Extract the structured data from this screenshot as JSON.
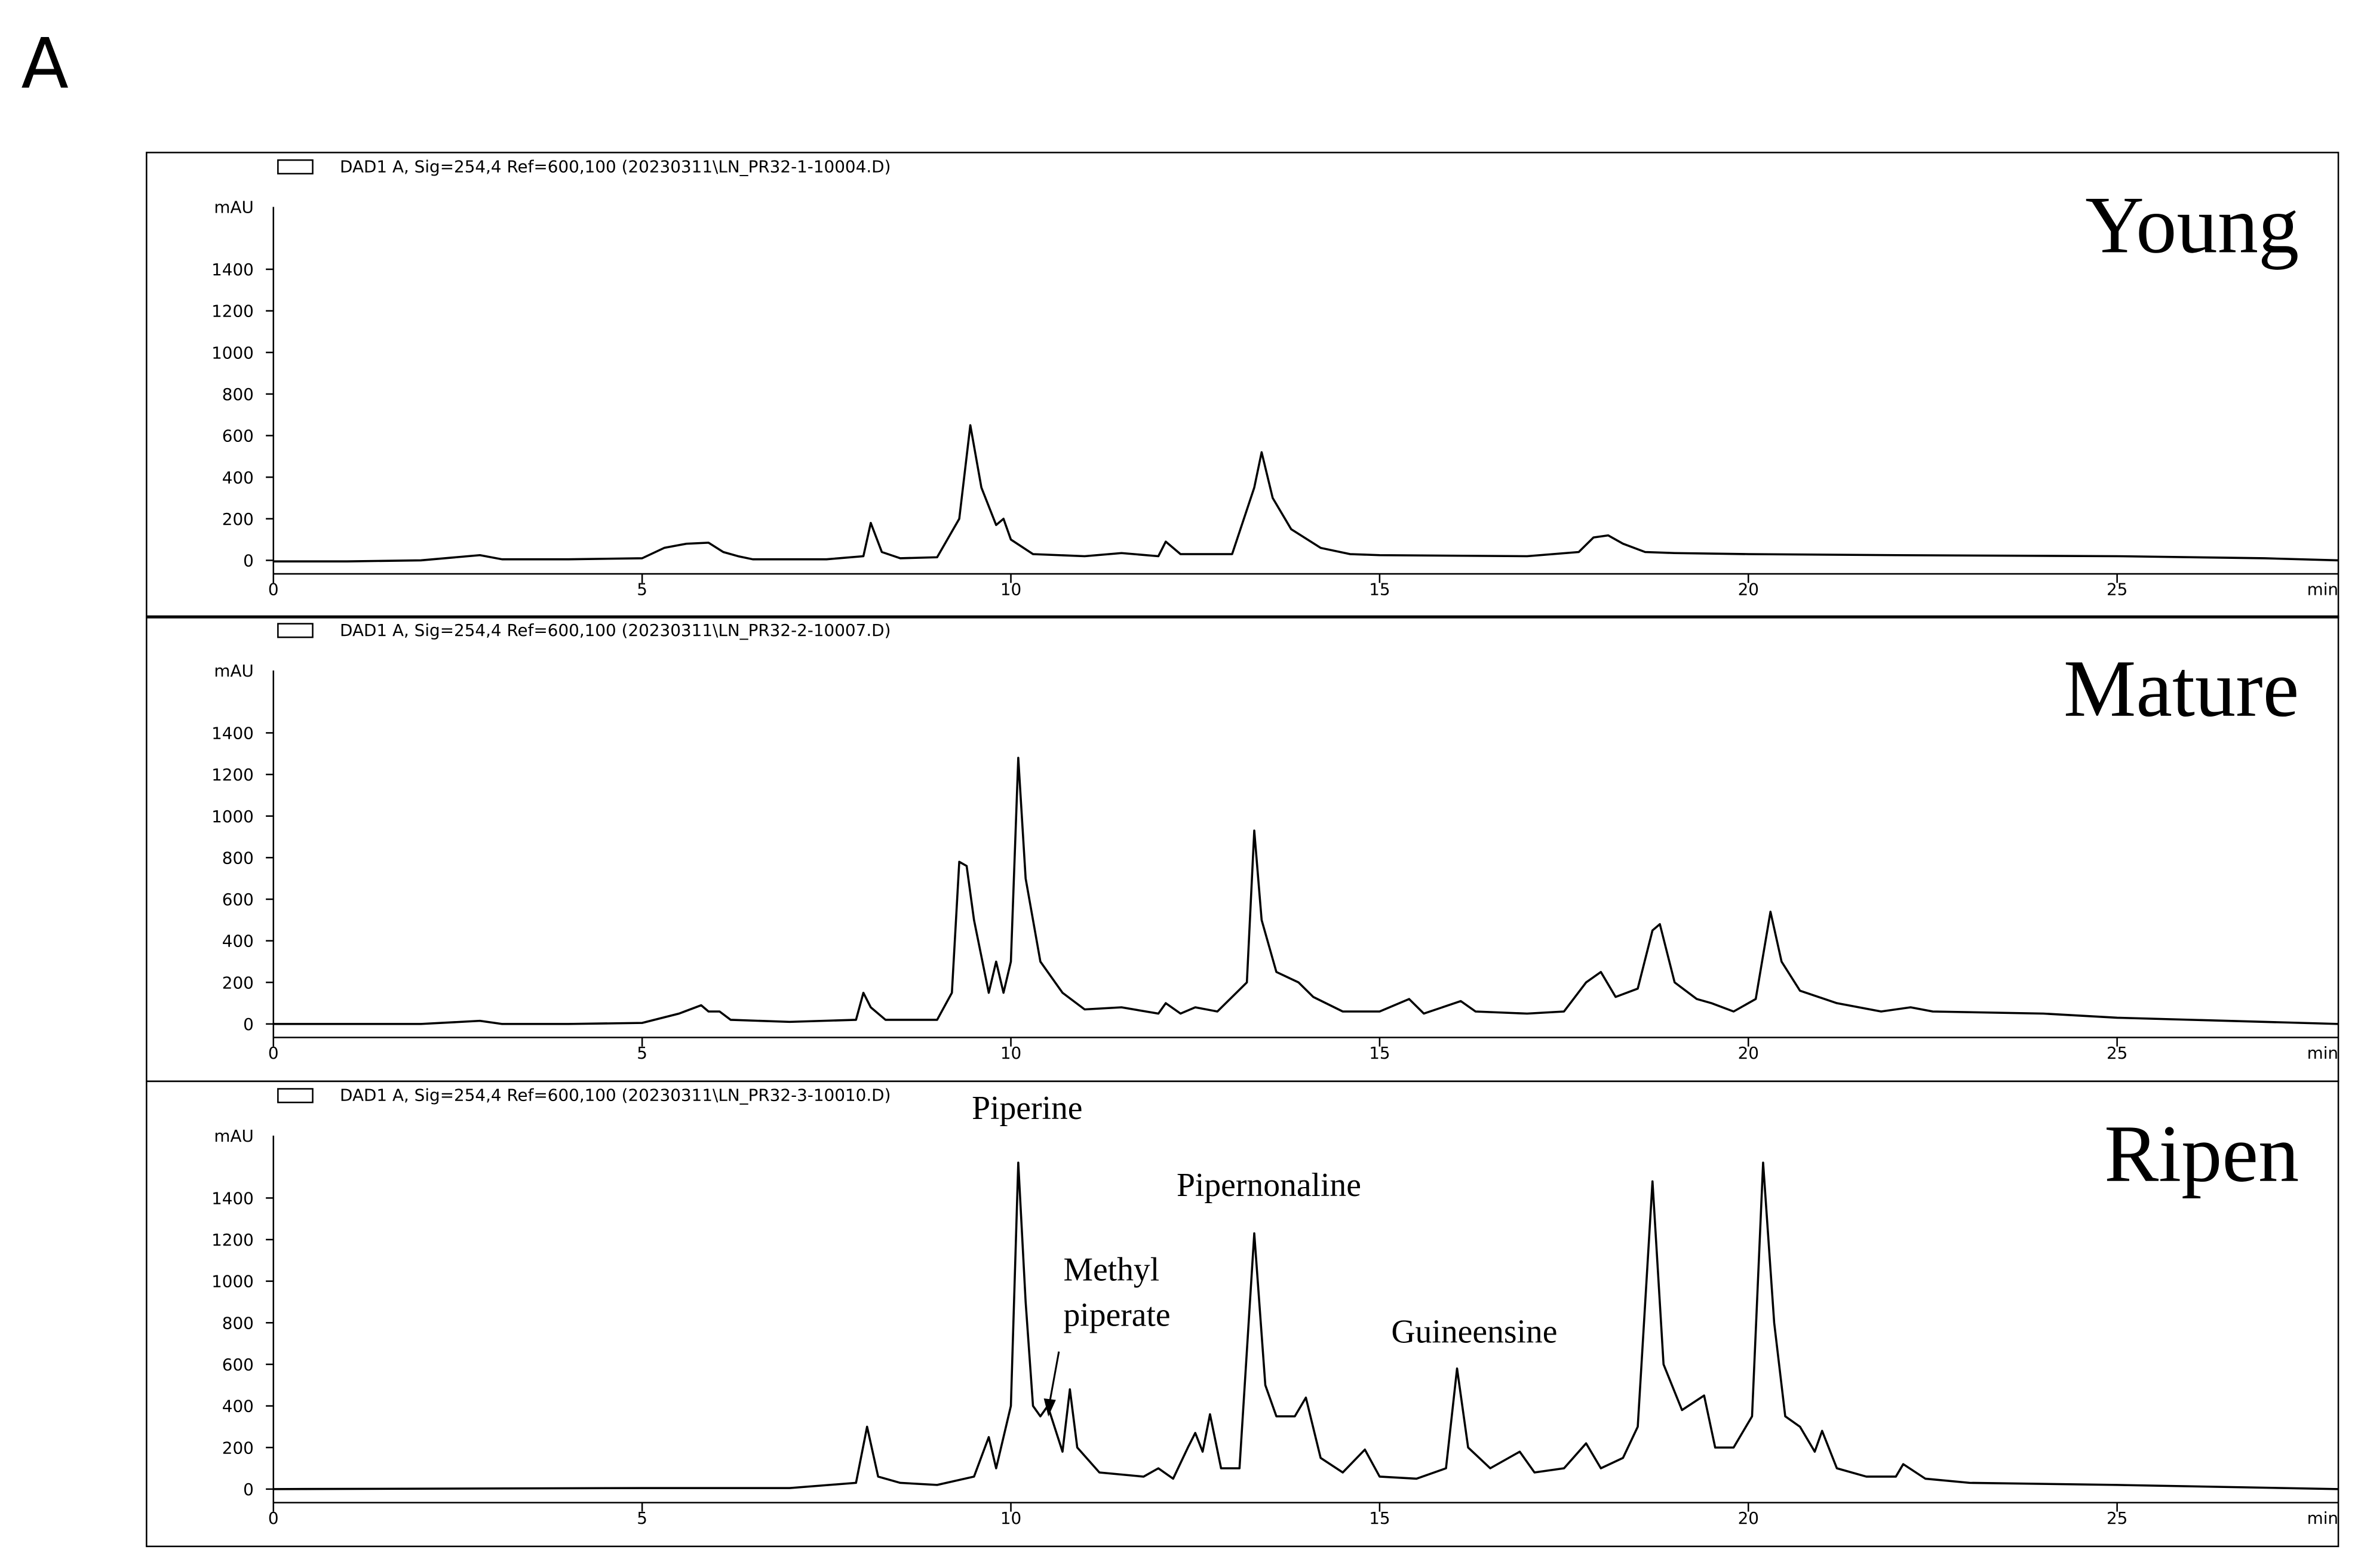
{
  "figure_label": "A",
  "chart_data": [
    {
      "type": "line",
      "label": "Young",
      "y_label": "mAU",
      "x_label": "min",
      "xlim": [
        0,
        28
      ],
      "ylim": [
        -65,
        1700
      ],
      "xticks": [
        0,
        5,
        10,
        15,
        20,
        25
      ],
      "yticks": [
        0,
        200,
        400,
        600,
        800,
        1000,
        1200,
        1400
      ],
      "x": [
        0,
        1,
        2,
        2.8,
        3.1,
        4,
        5,
        5.3,
        5.6,
        5.9,
        6.1,
        6.3,
        6.5,
        7.5,
        8.0,
        8.1,
        8.25,
        8.5,
        9.0,
        9.3,
        9.45,
        9.6,
        9.8,
        9.9,
        10.0,
        10.3,
        11,
        11.5,
        12.0,
        12.1,
        12.3,
        13.0,
        13.3,
        13.4,
        13.55,
        13.8,
        14.2,
        14.6,
        15,
        17,
        17.7,
        17.9,
        18.1,
        18.3,
        18.6,
        19,
        20,
        22,
        25,
        27,
        28
      ],
      "series": [
        {
          "name": "DAD1 A, Sig=254,4 Ref=600,100 (20230311\\LN_PR32-1-10004.D)",
          "color": "#000000",
          "values": [
            -5,
            -5,
            0,
            25,
            5,
            5,
            10,
            60,
            80,
            85,
            40,
            20,
            5,
            5,
            20,
            180,
            40,
            10,
            15,
            200,
            650,
            350,
            170,
            200,
            100,
            30,
            20,
            35,
            20,
            90,
            30,
            30,
            350,
            520,
            300,
            150,
            60,
            30,
            25,
            20,
            40,
            110,
            120,
            80,
            40,
            35,
            30,
            25,
            20,
            10,
            0
          ]
        }
      ]
    },
    {
      "type": "line",
      "label": "Mature",
      "y_label": "mAU",
      "x_label": "min",
      "xlim": [
        0,
        28
      ],
      "ylim": [
        -65,
        1700
      ],
      "xticks": [
        0,
        5,
        10,
        15,
        20,
        25
      ],
      "yticks": [
        0,
        200,
        400,
        600,
        800,
        1000,
        1200,
        1400
      ],
      "x": [
        0,
        2,
        2.8,
        3.1,
        4,
        5,
        5.5,
        5.8,
        5.9,
        6.05,
        6.2,
        7,
        7.9,
        8.0,
        8.1,
        8.3,
        9.0,
        9.2,
        9.3,
        9.4,
        9.5,
        9.7,
        9.8,
        9.9,
        10.0,
        10.1,
        10.2,
        10.4,
        10.7,
        11,
        11.5,
        12.0,
        12.1,
        12.3,
        12.5,
        12.8,
        13.2,
        13.3,
        13.4,
        13.6,
        13.9,
        14.1,
        14.5,
        15.0,
        15.4,
        15.6,
        16.1,
        16.3,
        17,
        17.5,
        17.8,
        18.0,
        18.2,
        18.5,
        18.7,
        18.8,
        19.0,
        19.3,
        19.5,
        19.8,
        20.1,
        20.3,
        20.45,
        20.7,
        21.2,
        21.8,
        22.2,
        22.5,
        24,
        25,
        28
      ],
      "series": [
        {
          "name": "DAD1 A, Sig=254,4 Ref=600,100 (20230311\\LN_PR32-2-10007.D)",
          "color": "#000000",
          "values": [
            0,
            0,
            15,
            0,
            0,
            5,
            50,
            90,
            60,
            60,
            20,
            10,
            20,
            150,
            80,
            20,
            20,
            150,
            780,
            760,
            500,
            150,
            300,
            150,
            300,
            1280,
            700,
            300,
            150,
            70,
            80,
            50,
            100,
            50,
            80,
            60,
            200,
            930,
            500,
            250,
            200,
            130,
            60,
            60,
            120,
            50,
            110,
            60,
            50,
            60,
            200,
            250,
            130,
            170,
            450,
            480,
            200,
            120,
            100,
            60,
            120,
            540,
            300,
            160,
            100,
            60,
            80,
            60,
            50,
            30,
            0
          ]
        }
      ]
    },
    {
      "type": "line",
      "label": "Ripen",
      "y_label": "mAU",
      "x_label": "min",
      "xlim": [
        0,
        28
      ],
      "ylim": [
        -65,
        1700
      ],
      "xticks": [
        0,
        5,
        10,
        15,
        20,
        25
      ],
      "yticks": [
        0,
        200,
        400,
        600,
        800,
        1000,
        1200,
        1400
      ],
      "x": [
        0,
        5,
        7,
        7.9,
        8.05,
        8.2,
        8.5,
        9.0,
        9.5,
        9.7,
        9.8,
        10.0,
        10.1,
        10.2,
        10.3,
        10.4,
        10.5,
        10.7,
        10.8,
        10.9,
        11.2,
        11.8,
        12.0,
        12.2,
        12.4,
        12.5,
        12.6,
        12.7,
        12.85,
        13.1,
        13.3,
        13.45,
        13.6,
        13.85,
        14.0,
        14.2,
        14.5,
        14.8,
        15.0,
        15.5,
        15.9,
        16.05,
        16.2,
        16.5,
        16.9,
        17.1,
        17.5,
        17.8,
        18.0,
        18.3,
        18.5,
        18.7,
        18.85,
        19.1,
        19.4,
        19.55,
        19.8,
        20.05,
        20.2,
        20.35,
        20.5,
        20.7,
        20.9,
        21.0,
        21.2,
        21.6,
        22.0,
        22.1,
        22.4,
        23,
        25,
        28
      ],
      "series": [
        {
          "name": "DAD1 A, Sig=254,4 Ref=600,100 (20230311\\LN_PR32-3-10010.D)",
          "color": "#000000",
          "values": [
            0,
            5,
            5,
            30,
            300,
            60,
            30,
            20,
            60,
            250,
            100,
            400,
            1570,
            900,
            400,
            350,
            400,
            180,
            480,
            200,
            80,
            60,
            100,
            50,
            200,
            270,
            180,
            360,
            100,
            100,
            1230,
            500,
            350,
            350,
            440,
            150,
            80,
            190,
            60,
            50,
            100,
            580,
            200,
            100,
            180,
            80,
            100,
            220,
            100,
            150,
            300,
            1480,
            600,
            380,
            450,
            200,
            200,
            350,
            1570,
            800,
            350,
            300,
            180,
            280,
            100,
            60,
            60,
            120,
            50,
            30,
            20,
            0
          ]
        }
      ],
      "annotations": [
        [
          "Piperine"
        ],
        [
          "Methyl",
          "piperate"
        ],
        [
          "Pipernonaline"
        ],
        [
          "Guineensine"
        ]
      ]
    }
  ]
}
